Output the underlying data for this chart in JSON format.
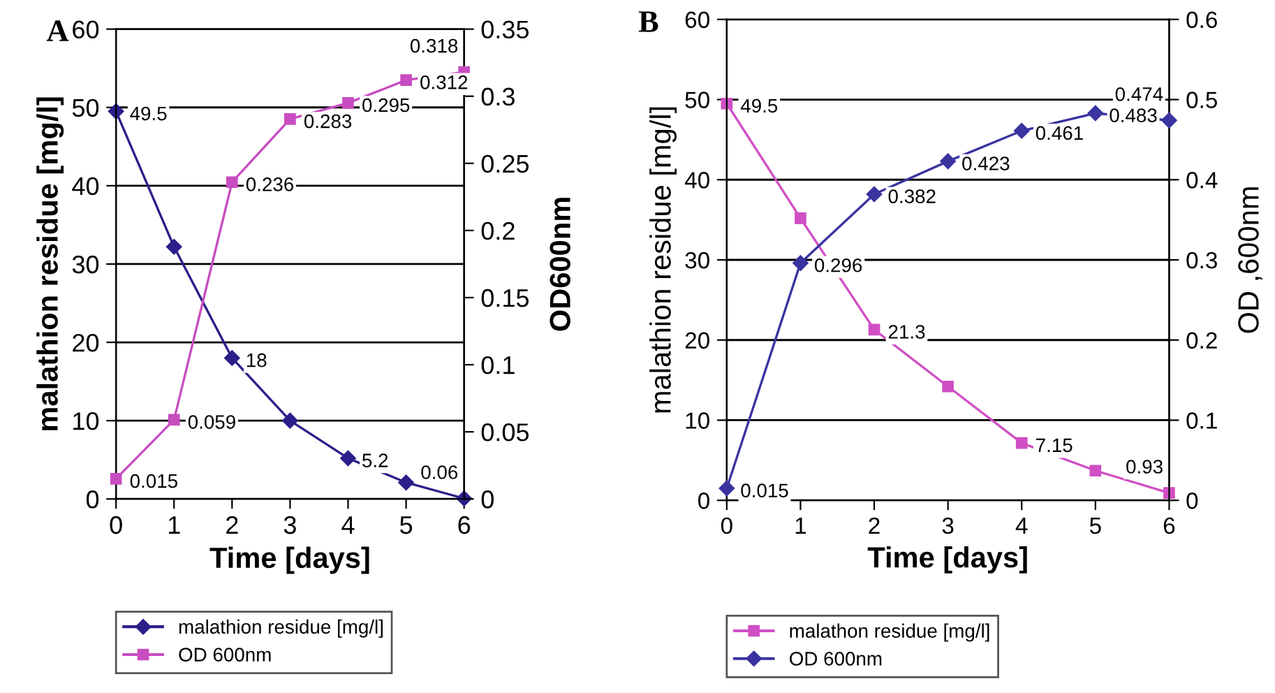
{
  "chart_data": [
    {
      "type": "line",
      "title": "A",
      "xlabel": "Time [days]",
      "ylabel": "malathion residue [mg/l]",
      "y2label": "OD600nm",
      "x": [
        0,
        1,
        2,
        3,
        4,
        5,
        6
      ],
      "xlim": [
        0,
        6
      ],
      "xticks": [
        0,
        1,
        2,
        3,
        4,
        5,
        6
      ],
      "ylim": [
        0,
        60
      ],
      "yticks": [
        0,
        10,
        20,
        30,
        40,
        50,
        60
      ],
      "y2lim": [
        0,
        0.35
      ],
      "y2ticks": [
        0,
        0.05,
        0.1,
        0.15,
        0.2,
        0.25,
        0.3,
        0.35
      ],
      "grid": "y",
      "legend": "bottom",
      "line_style": "solid",
      "series": [
        {
          "name": "malathion residue [mg/l]",
          "color": "#2b1f8a",
          "marker": "diamond",
          "values": [
            49.5,
            32.2,
            18,
            10,
            5.2,
            2.1,
            0.06
          ],
          "value_labels": [
            "49.5",
            null,
            "18",
            null,
            "5.2",
            null,
            "0.06"
          ]
        },
        {
          "name": "OD 600nm",
          "color": "#c84dc0",
          "marker": "square",
          "axis": "y2",
          "values": [
            0.015,
            0.059,
            0.236,
            0.283,
            0.295,
            0.312,
            0.318
          ],
          "value_labels": [
            "0.015",
            "0.059",
            "0.236",
            "0.283",
            "0.295",
            "0.312",
            "0.318"
          ]
        }
      ]
    },
    {
      "type": "line",
      "title": "B",
      "xlabel": "Time [days]",
      "ylabel": "malathion residue [mg/l]",
      "y2label": "OD ,600nm",
      "x": [
        0,
        1,
        2,
        3,
        4,
        5,
        6
      ],
      "xlim": [
        0,
        6
      ],
      "xticks": [
        0,
        1,
        2,
        3,
        4,
        5,
        6
      ],
      "ylim": [
        0,
        60
      ],
      "yticks": [
        0,
        10,
        20,
        30,
        40,
        50,
        60
      ],
      "y2lim": [
        0,
        0.6
      ],
      "y2ticks": [
        0,
        0.1,
        0.2,
        0.3,
        0.4,
        0.5,
        0.6
      ],
      "grid": "y",
      "legend": "bottom",
      "line_style": "solid",
      "series": [
        {
          "name": "malathon residue [mg/l]",
          "color": "#d04fc4",
          "marker": "square",
          "values": [
            49.5,
            35.2,
            21.3,
            14.2,
            7.15,
            3.7,
            0.93
          ],
          "value_labels": [
            "49.5",
            null,
            "21.3",
            null,
            "7.15",
            null,
            "0.93"
          ]
        },
        {
          "name": "OD 600nm",
          "color": "#3a33a0",
          "marker": "diamond",
          "axis": "y2",
          "values": [
            0.015,
            0.296,
            0.382,
            0.423,
            0.461,
            0.483,
            0.474
          ],
          "value_labels": [
            "0.015",
            "0.296",
            "0.382",
            "0.423",
            "0.461",
            "0.483",
            "0.474"
          ]
        }
      ]
    }
  ]
}
